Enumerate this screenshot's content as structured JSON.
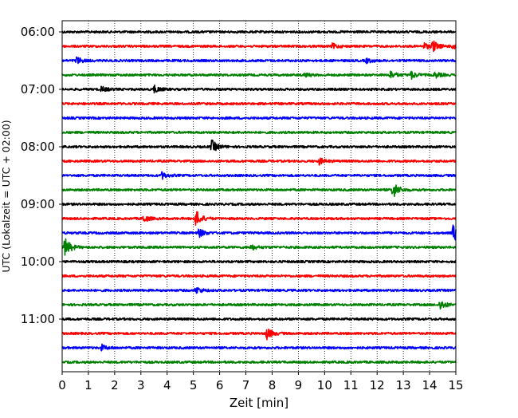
{
  "chart_data": {
    "type": "line",
    "title": "",
    "xlabel": "Zeit  [min]",
    "ylabel": "UTC (Lokalzeit = UTC + 02:00)",
    "xlim": [
      0,
      15
    ],
    "x_ticks": [
      0,
      1,
      2,
      3,
      4,
      5,
      6,
      7,
      8,
      9,
      10,
      11,
      12,
      13,
      14,
      15
    ],
    "x_tick_labels": [
      "0",
      "1",
      "2",
      "3",
      "4",
      "5",
      "6",
      "7",
      "8",
      "9",
      "10",
      "11",
      "12",
      "13",
      "14",
      "15"
    ],
    "y_tick_labels": [
      "06:00",
      "07:00",
      "08:00",
      "09:00",
      "10:00",
      "11:00"
    ],
    "y_tick_rows": [
      0,
      4,
      8,
      12,
      16,
      20
    ],
    "grid": "vertical-dotted",
    "legend": "none",
    "trace_colors": [
      "#000000",
      "#ff0000",
      "#0000ff",
      "#008000"
    ],
    "series": [
      {
        "start": "06:00",
        "events": []
      },
      {
        "start": "06:15",
        "events": [
          {
            "x": 10.3,
            "amp": 0.35
          },
          {
            "x": 13.8,
            "amp": 0.4
          },
          {
            "x": 14.1,
            "amp": 0.8
          },
          {
            "x": 14.9,
            "amp": 0.6
          }
        ]
      },
      {
        "start": "06:30",
        "events": [
          {
            "x": 0.55,
            "amp": 0.5
          },
          {
            "x": 11.6,
            "amp": 0.3
          }
        ]
      },
      {
        "start": "06:45",
        "events": [
          {
            "x": 9.2,
            "amp": 0.3
          },
          {
            "x": 12.5,
            "amp": 0.55
          },
          {
            "x": 13.3,
            "amp": 0.5
          },
          {
            "x": 14.2,
            "amp": 0.4
          }
        ]
      },
      {
        "start": "07:00",
        "events": [
          {
            "x": 1.5,
            "amp": 0.35
          },
          {
            "x": 3.5,
            "amp": 0.5
          }
        ]
      },
      {
        "start": "07:15",
        "events": []
      },
      {
        "start": "07:30",
        "events": []
      },
      {
        "start": "07:45",
        "events": []
      },
      {
        "start": "08:00",
        "events": [
          {
            "x": 5.7,
            "amp": 0.9
          }
        ]
      },
      {
        "start": "08:15",
        "events": [
          {
            "x": 9.8,
            "amp": 0.45
          }
        ]
      },
      {
        "start": "08:30",
        "events": [
          {
            "x": 3.8,
            "amp": 0.45
          }
        ]
      },
      {
        "start": "08:45",
        "events": [
          {
            "x": 12.6,
            "amp": 1.2
          }
        ]
      },
      {
        "start": "09:00",
        "events": []
      },
      {
        "start": "09:15",
        "events": [
          {
            "x": 3.1,
            "amp": 0.5
          },
          {
            "x": 5.1,
            "amp": 1.1
          }
        ]
      },
      {
        "start": "09:30",
        "events": [
          {
            "x": 5.2,
            "amp": 0.6
          },
          {
            "x": 14.9,
            "amp": 1.3
          }
        ]
      },
      {
        "start": "09:45",
        "events": [
          {
            "x": 0.1,
            "amp": 1.4
          },
          {
            "x": 7.2,
            "amp": 0.35
          }
        ]
      },
      {
        "start": "10:00",
        "events": []
      },
      {
        "start": "10:15",
        "events": []
      },
      {
        "start": "10:30",
        "events": [
          {
            "x": 5.1,
            "amp": 0.5
          }
        ]
      },
      {
        "start": "10:45",
        "events": [
          {
            "x": 14.4,
            "amp": 0.7
          }
        ]
      },
      {
        "start": "11:00",
        "events": []
      },
      {
        "start": "11:15",
        "events": [
          {
            "x": 7.8,
            "amp": 0.8
          }
        ]
      },
      {
        "start": "11:30",
        "events": [
          {
            "x": 1.5,
            "amp": 0.4
          }
        ]
      },
      {
        "start": "11:45",
        "events": []
      }
    ]
  }
}
